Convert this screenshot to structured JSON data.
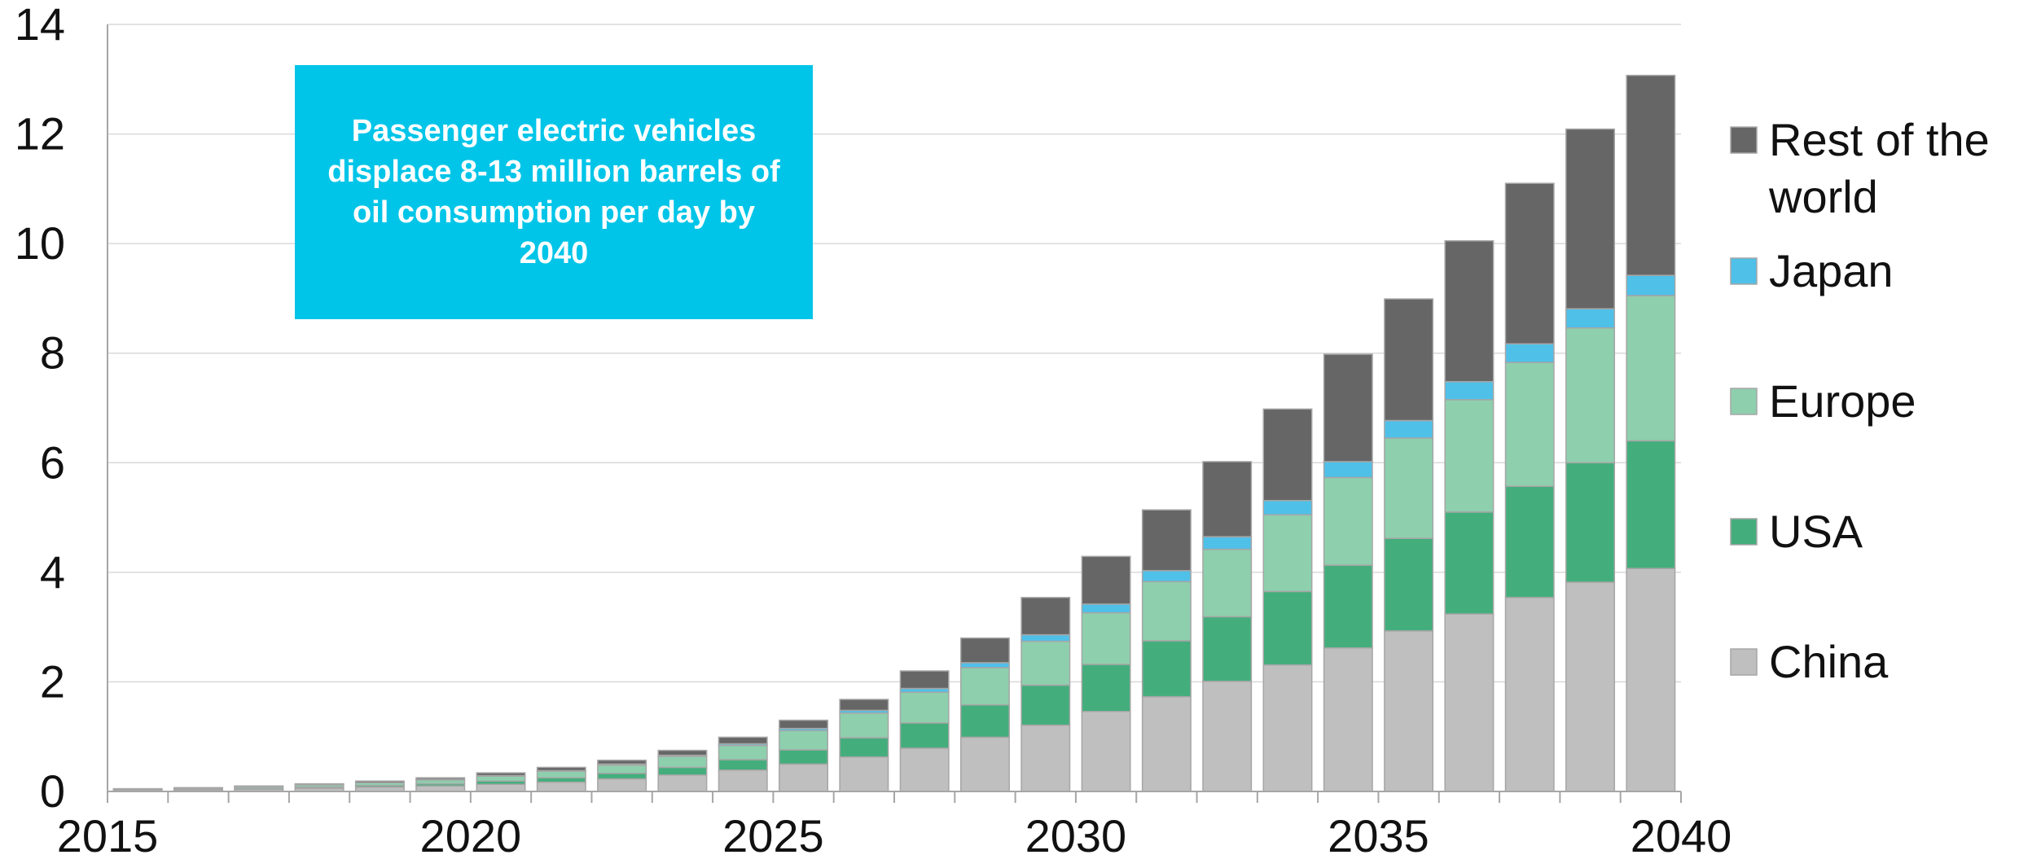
{
  "chart_data": {
    "type": "bar",
    "stacked": true,
    "annotation": "Passenger electric vehicles displace 8-13 million barrels of oil consumption per day by 2040",
    "categories": [
      2015,
      2016,
      2017,
      2018,
      2019,
      2020,
      2021,
      2022,
      2023,
      2024,
      2025,
      2026,
      2027,
      2028,
      2029,
      2030,
      2031,
      2032,
      2033,
      2034,
      2035,
      2036,
      2037,
      2038,
      2039,
      2040
    ],
    "x_tick_labels": [
      "2015",
      "2020",
      "2025",
      "2030",
      "2035",
      "2040"
    ],
    "y_tick_labels": [
      "0",
      "2",
      "4",
      "6",
      "8",
      "10",
      "12",
      "14"
    ],
    "ylim": [
      0,
      14
    ],
    "grid": true,
    "legend_position": "right",
    "series": [
      {
        "name": "China",
        "color": "#bfbfbf",
        "values": [
          0.02,
          0.03,
          0.04,
          0.06,
          0.08,
          0.1,
          0.13,
          0.17,
          0.23,
          0.3,
          0.39,
          0.5,
          0.63,
          0.79,
          0.99,
          1.21,
          1.46,
          1.73,
          2.01,
          2.31,
          2.62,
          2.93,
          3.24,
          3.54,
          3.82,
          4.07
        ]
      },
      {
        "name": "USA",
        "color": "#43ae7c",
        "values": [
          0.01,
          0.01,
          0.01,
          0.02,
          0.03,
          0.04,
          0.06,
          0.08,
          0.1,
          0.14,
          0.19,
          0.26,
          0.35,
          0.46,
          0.59,
          0.73,
          0.86,
          1.02,
          1.18,
          1.34,
          1.51,
          1.69,
          1.86,
          2.03,
          2.18,
          2.33
        ]
      },
      {
        "name": "Europe",
        "color": "#8ecfae",
        "values": [
          0.01,
          0.02,
          0.03,
          0.04,
          0.05,
          0.07,
          0.09,
          0.12,
          0.15,
          0.2,
          0.26,
          0.35,
          0.45,
          0.56,
          0.68,
          0.8,
          0.94,
          1.08,
          1.23,
          1.4,
          1.6,
          1.83,
          2.05,
          2.26,
          2.46,
          2.65
        ]
      },
      {
        "name": "Japan",
        "color": "#4fc0e8",
        "values": [
          0.0,
          0.0,
          0.0,
          0.0,
          0.0,
          0.01,
          0.01,
          0.01,
          0.02,
          0.02,
          0.03,
          0.04,
          0.05,
          0.07,
          0.09,
          0.12,
          0.16,
          0.2,
          0.23,
          0.26,
          0.29,
          0.32,
          0.33,
          0.34,
          0.35,
          0.37
        ]
      },
      {
        "name": "Rest of the world",
        "color": "#666666",
        "values": [
          0.01,
          0.01,
          0.02,
          0.02,
          0.03,
          0.03,
          0.05,
          0.06,
          0.07,
          0.09,
          0.12,
          0.15,
          0.2,
          0.32,
          0.45,
          0.68,
          0.87,
          1.11,
          1.37,
          1.67,
          1.96,
          2.22,
          2.57,
          2.93,
          3.28,
          3.65
        ]
      }
    ],
    "legend_order": [
      "Rest of the world",
      "Japan",
      "Europe",
      "USA",
      "China"
    ]
  }
}
